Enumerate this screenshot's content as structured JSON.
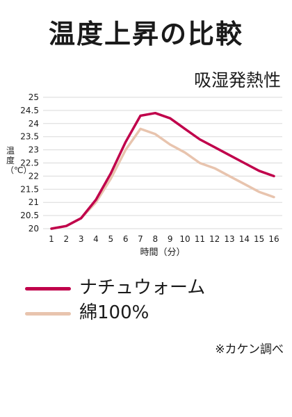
{
  "header": {
    "title": "温度上昇の比較",
    "subtitle": "吸湿発熱性",
    "source": "※カケン調べ"
  },
  "chart_data": {
    "type": "line",
    "title": "温度上昇の比較",
    "subtitle": "吸湿発熱性",
    "xlabel": "時間（分）",
    "ylabel": [
      "温",
      "度",
      "（℃）"
    ],
    "x": [
      1,
      2,
      3,
      4,
      5,
      6,
      7,
      8,
      9,
      10,
      11,
      12,
      13,
      14,
      15,
      16
    ],
    "xlim": [
      1,
      16
    ],
    "ylim": [
      20,
      25
    ],
    "yticks": [
      "20",
      "20.5",
      "21",
      "21.5",
      "22",
      "22.5",
      "23",
      "23.5",
      "24",
      "24.5",
      "25"
    ],
    "grid": true,
    "legend_position": "bottom",
    "series": [
      {
        "name": "ナチュウォーム",
        "color": "#c0004b",
        "values": [
          20.0,
          20.1,
          20.4,
          21.1,
          22.1,
          23.3,
          24.3,
          24.4,
          24.2,
          23.8,
          23.4,
          23.1,
          22.8,
          22.5,
          22.2,
          22.0
        ]
      },
      {
        "name": "綿100%",
        "color": "#e8c4ae",
        "values": [
          20.0,
          20.1,
          20.4,
          21.0,
          21.9,
          23.0,
          23.8,
          23.6,
          23.2,
          22.9,
          22.5,
          22.3,
          22.0,
          21.7,
          21.4,
          21.2
        ]
      }
    ]
  }
}
